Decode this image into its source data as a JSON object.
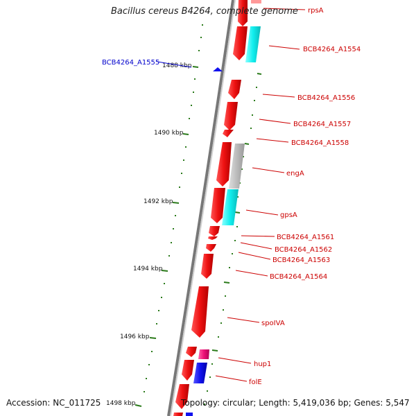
{
  "title": "Bacillus cereus B4264, complete genome",
  "accession": "Accession: NC_011725",
  "topology": "Topology: circular; Length: 5,419,036 bp; Genes: 5,547",
  "colors": {
    "backbone": "#8a8a8a",
    "tick": "#2a7a1a",
    "gene_red": "#ee1111",
    "gene_cyan": "#11eeee",
    "gene_gray": "#bbbbbb",
    "gene_pink": "#ee1177",
    "gene_blue": "#1111ee",
    "label_red": "#cc0000",
    "label_blue": "#0000cc"
  },
  "ruler_labels": [
    "1488 kbp",
    "1490 kbp",
    "1492 kbp",
    "1494 kbp",
    "1496 kbp",
    "1498 kbp"
  ],
  "gene_labels": [
    {
      "text": "rpsA",
      "color": "red"
    },
    {
      "text": "BCB4264_A1554",
      "color": "red"
    },
    {
      "text": "BCB4264_A1555",
      "color": "blue"
    },
    {
      "text": "BCB4264_A1556",
      "color": "red"
    },
    {
      "text": "BCB4264_A1557",
      "color": "red"
    },
    {
      "text": "BCB4264_A1558",
      "color": "red"
    },
    {
      "text": "engA",
      "color": "red"
    },
    {
      "text": "gpsA",
      "color": "red"
    },
    {
      "text": "BCB4264_A1561",
      "color": "red"
    },
    {
      "text": "BCB4264_A1562",
      "color": "red"
    },
    {
      "text": "BCB4264_A1563",
      "color": "red"
    },
    {
      "text": "BCB4264_A1564",
      "color": "red"
    },
    {
      "text": "spoIVA",
      "color": "red"
    },
    {
      "text": "hup1",
      "color": "red"
    },
    {
      "text": "folE",
      "color": "red"
    }
  ]
}
